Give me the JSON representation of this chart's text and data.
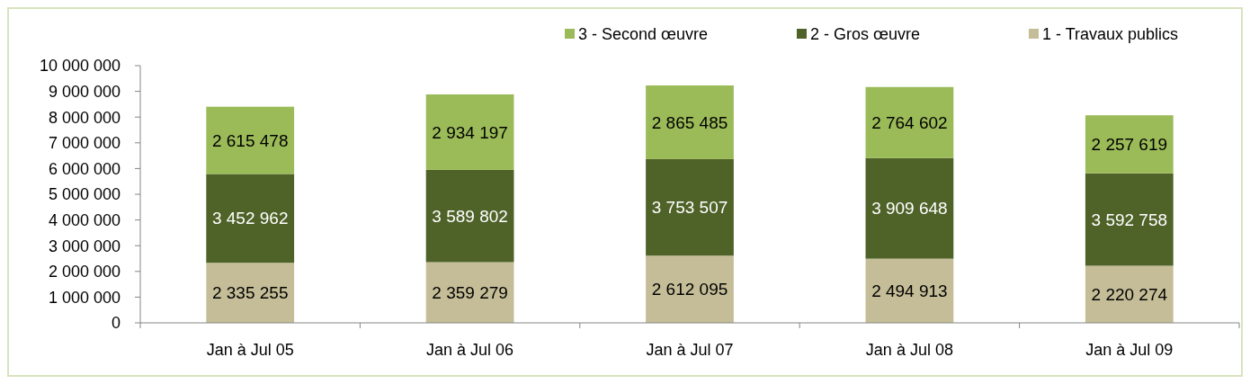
{
  "chart_data": {
    "type": "bar",
    "stacked": true,
    "categories": [
      "Jan à Jul 05",
      "Jan à Jul 06",
      "Jan à Jul 07",
      "Jan à Jul 08",
      "Jan à Jul 09"
    ],
    "series": [
      {
        "name": "1 - Travaux publics",
        "color": "#c4bd97",
        "values": [
          2335255,
          2359279,
          2612095,
          2494913,
          2220274
        ],
        "value_labels": [
          "2 335 255",
          "2 359 279",
          "2 612 095",
          "2 494 913",
          "2 220 274"
        ]
      },
      {
        "name": "2 - Gros œuvre",
        "color": "#4f6228",
        "values": [
          3452962,
          3589802,
          3753507,
          3909648,
          3592758
        ],
        "value_labels": [
          "3 452 962",
          "3 589 802",
          "3 753 507",
          "3 909 648",
          "3 592 758"
        ]
      },
      {
        "name": "3 - Second œuvre",
        "color": "#9bbb59",
        "values": [
          2615478,
          2934197,
          2865485,
          2764602,
          2257619
        ],
        "value_labels": [
          "2 615 478",
          "2 934 197",
          "2 865 485",
          "2 764 602",
          "2 257 619"
        ]
      }
    ],
    "ylim": [
      0,
      10000000
    ],
    "yticks": [
      0,
      {
        "value": 1000000,
        "label": "1 000 000"
      },
      {
        "value": 2000000,
        "label": "2 000 000"
      },
      {
        "value": 3000000,
        "label": "3 000 000"
      },
      {
        "value": 4000000,
        "label": "4 000 000"
      },
      {
        "value": 5000000,
        "label": "5 000 000"
      },
      {
        "value": 6000000,
        "label": "6 000 000"
      },
      {
        "value": 7000000,
        "label": "7 000 000"
      },
      {
        "value": 8000000,
        "label": "8 000 000"
      },
      {
        "value": 9000000,
        "label": "9 000 000"
      },
      {
        "value": 10000000,
        "label": "10 000 000"
      }
    ],
    "grid": false,
    "legend": "top right"
  }
}
